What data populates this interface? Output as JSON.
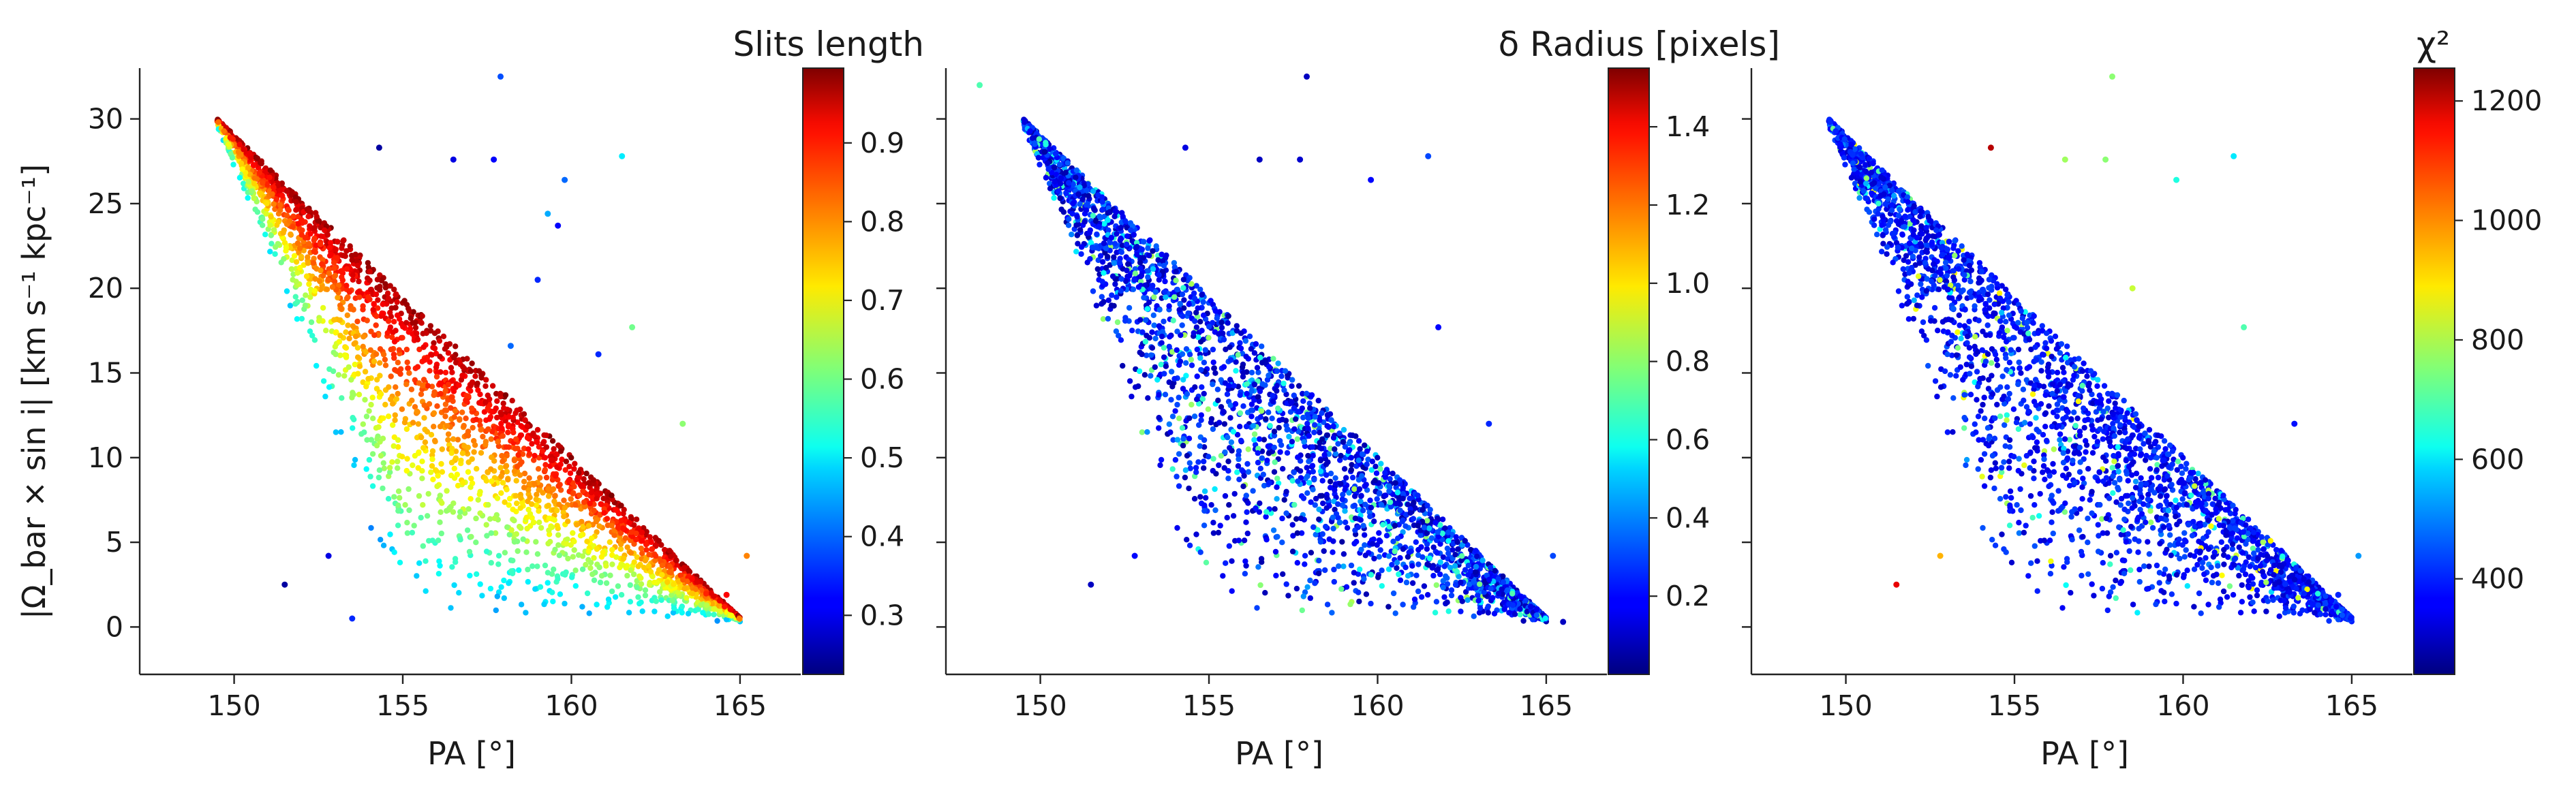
{
  "figure": {
    "shared_ylabel": "|Ω_bar × sin i|   [km s⁻¹ kpc⁻¹]",
    "shared_xlabel": "PA [°]"
  },
  "chart_data": [
    {
      "type": "scatter",
      "panel": "left",
      "xlabel": "PA [°]",
      "ylabel": "|Ω_bar × sin i|   [km s⁻¹ kpc⁻¹]",
      "xlim": [
        147.2,
        166.8
      ],
      "ylim": [
        -2.8,
        33.0
      ],
      "xticks": [
        150,
        155,
        160,
        165
      ],
      "yticks": [
        0,
        5,
        10,
        15,
        20,
        25,
        30
      ],
      "grid": false,
      "colorbar": {
        "title": "Slits length",
        "colormap": "jet",
        "range": [
          0.225,
          0.995
        ],
        "ticks": [
          0.3,
          0.4,
          0.5,
          0.6,
          0.7,
          0.8,
          0.9
        ],
        "tick_labels": [
          "0.3",
          "0.4",
          "0.5",
          "0.6",
          "0.7",
          "0.8",
          "0.9"
        ]
      },
      "envelope_upper_edge": [
        [
          148.3,
          32.0
        ],
        [
          149.5,
          30.0
        ],
        [
          153.0,
          25.0
        ],
        [
          157.0,
          18.7
        ],
        [
          161.5,
          9.2
        ],
        [
          163.5,
          5.0
        ],
        [
          165.4,
          0.3
        ]
      ],
      "envelope_lower_edge": [
        [
          149.5,
          29.5
        ],
        [
          151.0,
          22.0
        ],
        [
          152.5,
          14.0
        ],
        [
          154.0,
          5.0
        ],
        [
          155.0,
          0.3
        ],
        [
          160.0,
          0.3
        ],
        [
          163.0,
          2.5
        ]
      ],
      "color_trend": "values near the upper edge are highest (~0.95), decreasing to ~0.45 toward the lower-left",
      "outliers": [
        {
          "x": 151.5,
          "y": 2.5,
          "c": 0.25
        },
        {
          "x": 152.8,
          "y": 4.2,
          "c": 0.3
        },
        {
          "x": 153.5,
          "y": 0.5,
          "c": 0.35
        },
        {
          "x": 154.3,
          "y": 28.3,
          "c": 0.25
        },
        {
          "x": 156.5,
          "y": 27.6,
          "c": 0.3
        },
        {
          "x": 157.7,
          "y": 27.6,
          "c": 0.32
        },
        {
          "x": 157.9,
          "y": 32.5,
          "c": 0.38
        },
        {
          "x": 158.2,
          "y": 16.6,
          "c": 0.4
        },
        {
          "x": 159.0,
          "y": 20.5,
          "c": 0.35
        },
        {
          "x": 159.3,
          "y": 24.4,
          "c": 0.45
        },
        {
          "x": 159.6,
          "y": 23.7,
          "c": 0.32
        },
        {
          "x": 159.8,
          "y": 26.4,
          "c": 0.4
        },
        {
          "x": 160.8,
          "y": 16.1,
          "c": 0.35
        },
        {
          "x": 161.5,
          "y": 27.8,
          "c": 0.5
        },
        {
          "x": 161.8,
          "y": 17.7,
          "c": 0.6
        },
        {
          "x": 163.3,
          "y": 12.0,
          "c": 0.62
        },
        {
          "x": 165.2,
          "y": 4.2,
          "c": 0.8
        },
        {
          "x": 164.6,
          "y": 1.9,
          "c": 0.9
        }
      ]
    },
    {
      "type": "scatter",
      "panel": "middle",
      "xlabel": "PA [°]",
      "xlim": [
        147.2,
        166.8
      ],
      "ylim": [
        -2.8,
        33.0
      ],
      "xticks": [
        150,
        155,
        160,
        165
      ],
      "grid": false,
      "colorbar": {
        "title": "δ Radius [pixels]",
        "colormap": "jet",
        "range": [
          0.0,
          1.55
        ],
        "ticks": [
          0.2,
          0.4,
          0.6,
          0.8,
          1.0,
          1.2,
          1.4
        ],
        "tick_labels": [
          "0.2",
          "0.4",
          "0.6",
          "0.8",
          "1.0",
          "1.2",
          "1.4"
        ]
      },
      "color_trend": "mostly 0.05–0.35 (blue), scattered points up to ~0.8 along the upper edge",
      "outliers": [
        {
          "x": 148.2,
          "y": 32.0,
          "c": 0.7
        },
        {
          "x": 151.5,
          "y": 2.5,
          "c": 0.1
        },
        {
          "x": 152.8,
          "y": 4.2,
          "c": 0.2
        },
        {
          "x": 154.3,
          "y": 28.3,
          "c": 0.15
        },
        {
          "x": 156.5,
          "y": 27.6,
          "c": 0.1
        },
        {
          "x": 157.7,
          "y": 27.6,
          "c": 0.12
        },
        {
          "x": 157.9,
          "y": 32.5,
          "c": 0.1
        },
        {
          "x": 159.8,
          "y": 26.4,
          "c": 0.2
        },
        {
          "x": 161.5,
          "y": 27.8,
          "c": 0.3
        },
        {
          "x": 161.8,
          "y": 17.7,
          "c": 0.2
        },
        {
          "x": 163.3,
          "y": 12.0,
          "c": 0.25
        },
        {
          "x": 165.2,
          "y": 4.2,
          "c": 0.3
        },
        {
          "x": 165.5,
          "y": 0.3,
          "c": 0.1
        }
      ]
    },
    {
      "type": "scatter",
      "panel": "right",
      "xlabel": "PA [°]",
      "xlim": [
        147.2,
        166.8
      ],
      "ylim": [
        -2.8,
        33.0
      ],
      "xticks": [
        150,
        155,
        160,
        165
      ],
      "grid": false,
      "colorbar": {
        "title": "χ²",
        "colormap": "jet",
        "range": [
          240,
          1255
        ],
        "ticks": [
          400,
          600,
          800,
          1000,
          1200
        ],
        "tick_labels": [
          "400",
          "600",
          "800",
          "1000",
          "1200"
        ]
      },
      "color_trend": "mostly 300–450 (blue), a few points 500–1200",
      "outliers": [
        {
          "x": 151.5,
          "y": 2.5,
          "c": 1150
        },
        {
          "x": 152.8,
          "y": 4.2,
          "c": 950
        },
        {
          "x": 154.3,
          "y": 28.3,
          "c": 1200
        },
        {
          "x": 156.5,
          "y": 27.6,
          "c": 780
        },
        {
          "x": 157.7,
          "y": 27.6,
          "c": 760
        },
        {
          "x": 157.9,
          "y": 32.5,
          "c": 760
        },
        {
          "x": 159.8,
          "y": 26.4,
          "c": 650
        },
        {
          "x": 161.5,
          "y": 27.8,
          "c": 600
        },
        {
          "x": 158.5,
          "y": 20.0,
          "c": 820
        },
        {
          "x": 161.8,
          "y": 17.7,
          "c": 700
        },
        {
          "x": 163.3,
          "y": 12.0,
          "c": 380
        },
        {
          "x": 165.2,
          "y": 4.2,
          "c": 520
        },
        {
          "x": 164.6,
          "y": 1.9,
          "c": 400
        }
      ]
    }
  ]
}
